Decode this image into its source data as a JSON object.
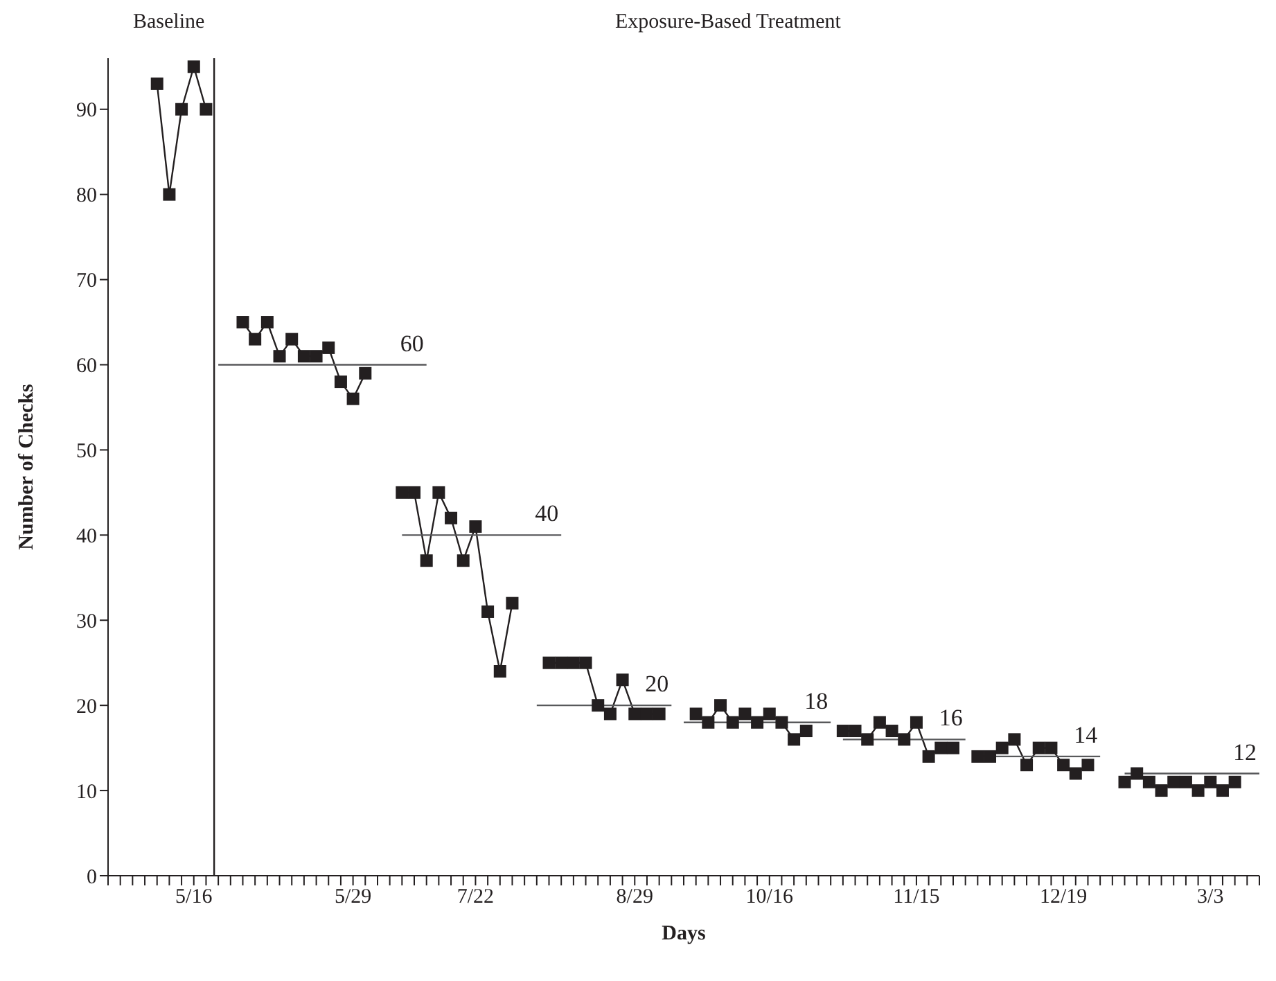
{
  "chart_data": {
    "type": "line",
    "xlabel": "Days",
    "ylabel": "Number of Checks",
    "annotations": [
      "Baseline",
      "Exposure-Based Treatment"
    ],
    "ylim": [
      0,
      96
    ],
    "yticks": [
      0,
      10,
      20,
      30,
      40,
      50,
      60,
      70,
      80,
      90
    ],
    "grid": false,
    "legend": false,
    "marker": "square",
    "categories": [
      null,
      null,
      null,
      null,
      null,
      null,
      null,
      "5/16",
      null,
      null,
      null,
      null,
      null,
      null,
      null,
      null,
      null,
      null,
      null,
      null,
      "5/29",
      null,
      null,
      null,
      null,
      null,
      null,
      null,
      null,
      null,
      "7/22",
      null,
      null,
      null,
      null,
      null,
      null,
      null,
      null,
      null,
      null,
      null,
      null,
      "8/29",
      null,
      null,
      null,
      null,
      null,
      null,
      null,
      null,
      null,
      null,
      "10/16",
      null,
      null,
      null,
      null,
      null,
      null,
      null,
      null,
      null,
      null,
      null,
      "11/15",
      null,
      null,
      null,
      null,
      null,
      null,
      null,
      null,
      null,
      null,
      null,
      "12/19",
      null,
      null,
      null,
      null,
      null,
      null,
      null,
      null,
      null,
      null,
      null,
      "3/3",
      null,
      null,
      null,
      null
    ],
    "series": [
      {
        "color": "#231f20",
        "values": [
          null,
          null,
          null,
          null,
          93,
          80,
          90,
          95,
          90,
          null,
          null,
          65,
          63,
          65,
          61,
          63,
          61,
          61,
          62,
          58,
          56,
          59,
          null,
          null,
          45,
          45,
          37,
          45,
          42,
          37,
          41,
          31,
          24,
          32,
          null,
          null,
          25,
          25,
          25,
          25,
          20,
          19,
          23,
          19,
          19,
          19,
          null,
          null,
          19,
          18,
          20,
          18,
          19,
          18,
          19,
          18,
          16,
          17,
          null,
          null,
          17,
          17,
          16,
          18,
          17,
          16,
          18,
          14,
          15,
          15,
          null,
          14,
          14,
          15,
          16,
          13,
          15,
          15,
          13,
          12,
          13,
          null,
          null,
          11,
          12,
          11,
          10,
          11,
          11,
          10,
          11,
          10,
          11,
          null,
          null
        ]
      },
      {
        "name": "60",
        "color": "#58595b",
        "marker": "none",
        "values": [
          null,
          null,
          null,
          null,
          null,
          null,
          null,
          null,
          null,
          60,
          60,
          60,
          60,
          60,
          60,
          60,
          60,
          60,
          60,
          60,
          60,
          60,
          60,
          60,
          60,
          60,
          60,
          null,
          null,
          null,
          null,
          null,
          null,
          null,
          null,
          null,
          null,
          null,
          null,
          null,
          null,
          null,
          null,
          null,
          null,
          null,
          null,
          null,
          null,
          null,
          null,
          null,
          null,
          null,
          null,
          null,
          null,
          null,
          null,
          null,
          null,
          null,
          null,
          null,
          null,
          null,
          null,
          null,
          null,
          null,
          null,
          null,
          null,
          null,
          null,
          null,
          null,
          null,
          null,
          null,
          null,
          null,
          null,
          null,
          null,
          null,
          null,
          null,
          null,
          null,
          null,
          null,
          null,
          null,
          null
        ]
      },
      {
        "name": "40",
        "color": "#58595b",
        "marker": "none",
        "values": [
          null,
          null,
          null,
          null,
          null,
          null,
          null,
          null,
          null,
          null,
          null,
          null,
          null,
          null,
          null,
          null,
          null,
          null,
          null,
          null,
          null,
          null,
          null,
          null,
          40,
          40,
          40,
          40,
          40,
          40,
          40,
          40,
          40,
          40,
          40,
          40,
          40,
          40,
          null,
          null,
          null,
          null,
          null,
          null,
          null,
          null,
          null,
          null,
          null,
          null,
          null,
          null,
          null,
          null,
          null,
          null,
          null,
          null,
          null,
          null,
          null,
          null,
          null,
          null,
          null,
          null,
          null,
          null,
          null,
          null,
          null,
          null,
          null,
          null,
          null,
          null,
          null,
          null,
          null,
          null,
          null,
          null,
          null,
          null,
          null,
          null,
          null,
          null,
          null,
          null,
          null,
          null,
          null,
          null,
          null
        ]
      },
      {
        "name": "20",
        "color": "#58595b",
        "marker": "none",
        "values": [
          null,
          null,
          null,
          null,
          null,
          null,
          null,
          null,
          null,
          null,
          null,
          null,
          null,
          null,
          null,
          null,
          null,
          null,
          null,
          null,
          null,
          null,
          null,
          null,
          null,
          null,
          null,
          null,
          null,
          null,
          null,
          null,
          null,
          null,
          null,
          20,
          20,
          20,
          20,
          20,
          20,
          20,
          20,
          20,
          20,
          20,
          20,
          null,
          null,
          null,
          null,
          null,
          null,
          null,
          null,
          null,
          null,
          null,
          null,
          null,
          null,
          null,
          null,
          null,
          null,
          null,
          null,
          null,
          null,
          null,
          null,
          null,
          null,
          null,
          null,
          null,
          null,
          null,
          null,
          null,
          null,
          null,
          null,
          null,
          null,
          null,
          null,
          null,
          null,
          null,
          null,
          null,
          null,
          null,
          null
        ]
      },
      {
        "name": "18",
        "color": "#58595b",
        "marker": "none",
        "values": [
          null,
          null,
          null,
          null,
          null,
          null,
          null,
          null,
          null,
          null,
          null,
          null,
          null,
          null,
          null,
          null,
          null,
          null,
          null,
          null,
          null,
          null,
          null,
          null,
          null,
          null,
          null,
          null,
          null,
          null,
          null,
          null,
          null,
          null,
          null,
          null,
          null,
          null,
          null,
          null,
          null,
          null,
          null,
          null,
          null,
          null,
          null,
          18,
          18,
          18,
          18,
          18,
          18,
          18,
          18,
          18,
          18,
          18,
          18,
          18,
          null,
          null,
          null,
          null,
          null,
          null,
          null,
          null,
          null,
          null,
          null,
          null,
          null,
          null,
          null,
          null,
          null,
          null,
          null,
          null,
          null,
          null,
          null,
          null,
          null,
          null,
          null,
          null,
          null,
          null,
          null,
          null,
          null,
          null,
          null
        ]
      },
      {
        "name": "16",
        "color": "#58595b",
        "marker": "none",
        "values": [
          null,
          null,
          null,
          null,
          null,
          null,
          null,
          null,
          null,
          null,
          null,
          null,
          null,
          null,
          null,
          null,
          null,
          null,
          null,
          null,
          null,
          null,
          null,
          null,
          null,
          null,
          null,
          null,
          null,
          null,
          null,
          null,
          null,
          null,
          null,
          null,
          null,
          null,
          null,
          null,
          null,
          null,
          null,
          null,
          null,
          null,
          null,
          null,
          null,
          null,
          null,
          null,
          null,
          null,
          null,
          null,
          null,
          null,
          null,
          null,
          16,
          16,
          16,
          16,
          16,
          16,
          16,
          16,
          16,
          16,
          16,
          null,
          null,
          null,
          null,
          null,
          null,
          null,
          null,
          null,
          null,
          null,
          null,
          null,
          null,
          null,
          null,
          null,
          null,
          null,
          null,
          null,
          null,
          null,
          null
        ]
      },
      {
        "name": "14",
        "color": "#58595b",
        "marker": "none",
        "values": [
          null,
          null,
          null,
          null,
          null,
          null,
          null,
          null,
          null,
          null,
          null,
          null,
          null,
          null,
          null,
          null,
          null,
          null,
          null,
          null,
          null,
          null,
          null,
          null,
          null,
          null,
          null,
          null,
          null,
          null,
          null,
          null,
          null,
          null,
          null,
          null,
          null,
          null,
          null,
          null,
          null,
          null,
          null,
          null,
          null,
          null,
          null,
          null,
          null,
          null,
          null,
          null,
          null,
          null,
          null,
          null,
          null,
          null,
          null,
          null,
          null,
          null,
          null,
          null,
          null,
          null,
          null,
          null,
          null,
          null,
          null,
          14,
          14,
          14,
          14,
          14,
          14,
          14,
          14,
          14,
          14,
          14,
          null,
          null,
          null,
          null,
          null,
          null,
          null,
          null,
          null,
          null,
          null,
          null,
          null
        ]
      },
      {
        "name": "12",
        "color": "#58595b",
        "marker": "none",
        "values": [
          null,
          null,
          null,
          null,
          null,
          null,
          null,
          null,
          null,
          null,
          null,
          null,
          null,
          null,
          null,
          null,
          null,
          null,
          null,
          null,
          null,
          null,
          null,
          null,
          null,
          null,
          null,
          null,
          null,
          null,
          null,
          null,
          null,
          null,
          null,
          null,
          null,
          null,
          null,
          null,
          null,
          null,
          null,
          null,
          null,
          null,
          null,
          null,
          null,
          null,
          null,
          null,
          null,
          null,
          null,
          null,
          null,
          null,
          null,
          null,
          null,
          null,
          null,
          null,
          null,
          null,
          null,
          null,
          null,
          null,
          null,
          null,
          null,
          null,
          null,
          null,
          null,
          null,
          null,
          null,
          null,
          null,
          null,
          12,
          12,
          12,
          12,
          12,
          12,
          12,
          12,
          12,
          12,
          12,
          12
        ]
      }
    ]
  }
}
